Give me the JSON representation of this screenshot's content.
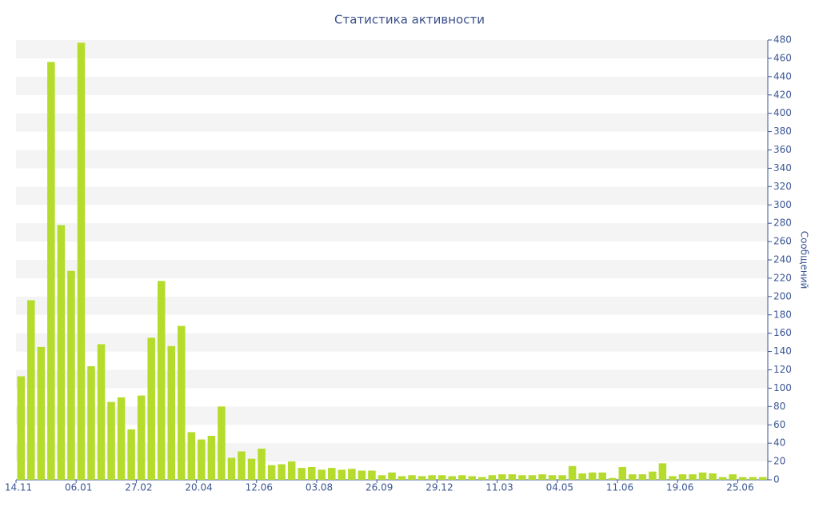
{
  "chart_data": {
    "type": "bar",
    "title": "Статистика активности",
    "y_label": "Сообщений",
    "categories": [
      "14.11",
      null,
      null,
      null,
      null,
      null,
      "06.01",
      null,
      null,
      null,
      null,
      null,
      "27.02",
      null,
      null,
      null,
      null,
      null,
      "20.04",
      null,
      null,
      null,
      null,
      null,
      "12.06",
      null,
      null,
      null,
      null,
      null,
      "03.08",
      null,
      null,
      null,
      null,
      null,
      "26.09",
      null,
      null,
      null,
      null,
      null,
      "29.12",
      null,
      null,
      null,
      null,
      null,
      "11.03",
      null,
      null,
      null,
      null,
      null,
      "04.05",
      null,
      null,
      null,
      null,
      null,
      "11.06",
      null,
      null,
      null,
      null,
      null,
      "19.06",
      null,
      null,
      null,
      null,
      null,
      "25.06",
      null,
      null
    ],
    "values": [
      113,
      196,
      145,
      456,
      278,
      228,
      477,
      124,
      148,
      85,
      90,
      55,
      92,
      155,
      217,
      146,
      168,
      52,
      44,
      48,
      80,
      24,
      31,
      23,
      34,
      16,
      17,
      20,
      13,
      14,
      11,
      13,
      11,
      12,
      10,
      10,
      5,
      8,
      4,
      5,
      4,
      5,
      5,
      4,
      5,
      4,
      3,
      5,
      6,
      6,
      5,
      5,
      6,
      5,
      5,
      15,
      7,
      8,
      8,
      2,
      14,
      6,
      6,
      9,
      18,
      4,
      6,
      6,
      8,
      7,
      3,
      6,
      3,
      3,
      3
    ],
    "color": "#b5dc2c",
    "ylim": [
      0,
      480
    ],
    "yticks": [
      0,
      20,
      40,
      60,
      80,
      100,
      120,
      140,
      160,
      180,
      200,
      220,
      240,
      260,
      280,
      300,
      320,
      340,
      360,
      380,
      400,
      420,
      440,
      460,
      480
    ],
    "grid": "stripes"
  }
}
